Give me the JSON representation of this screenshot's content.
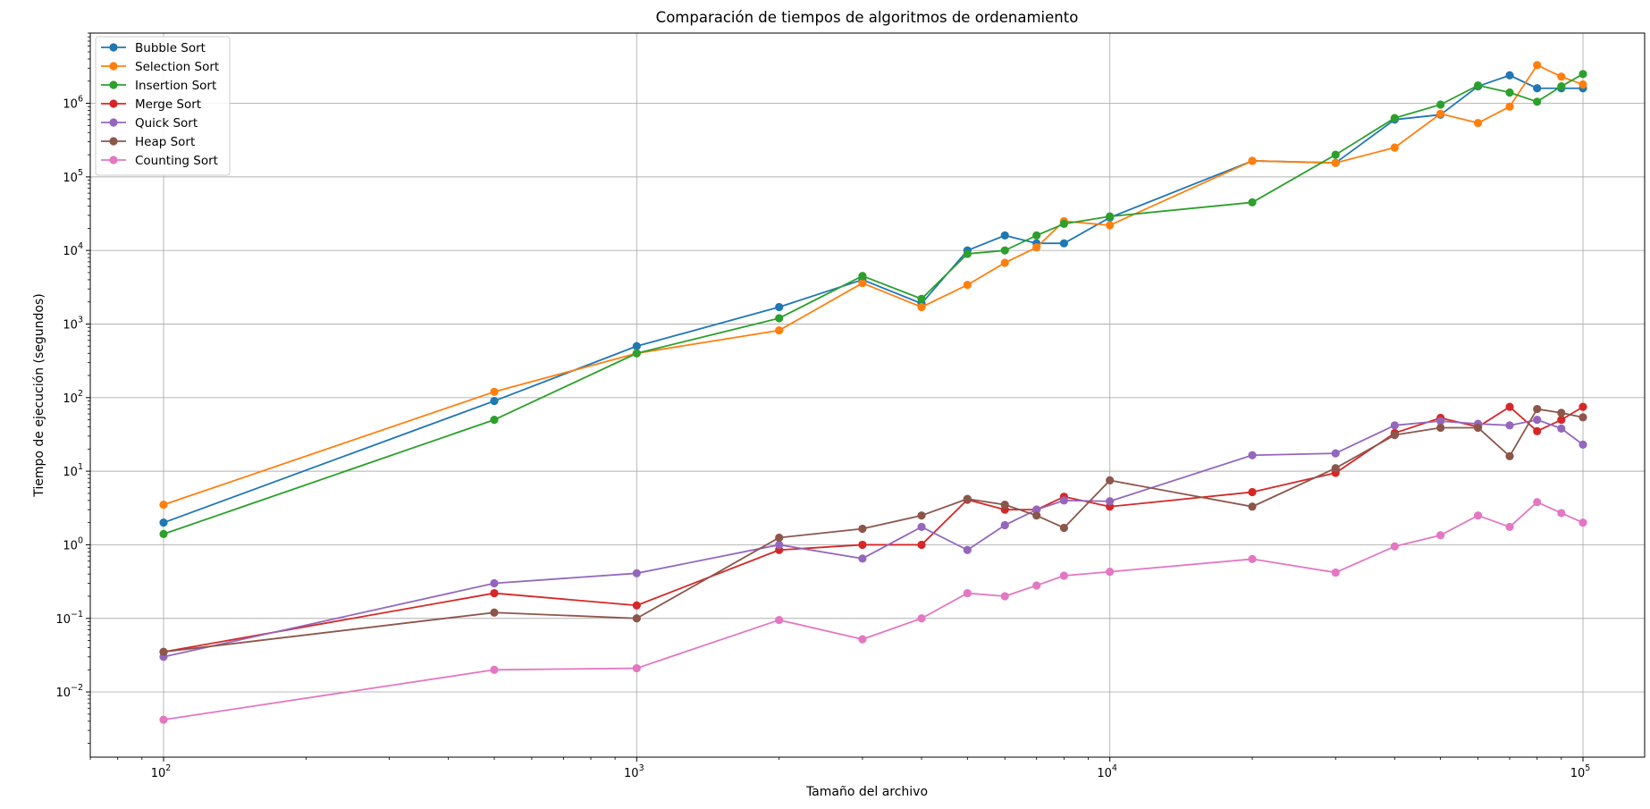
{
  "chart_data": {
    "type": "line",
    "title": "Comparación de tiempos de algoritmos de ordenamiento",
    "xlabel": "Tamaño del archivo",
    "ylabel": "Tiempo de ejecución (segundos)",
    "xscale": "log",
    "yscale": "log",
    "xlim": [
      70,
      135000
    ],
    "ylim": [
      0.0013,
      9000000
    ],
    "grid": true,
    "legend_position": "top-left",
    "x_ticks": [
      {
        "value": 100,
        "base": "10",
        "exp": "2"
      },
      {
        "value": 1000,
        "base": "10",
        "exp": "3"
      },
      {
        "value": 10000,
        "base": "10",
        "exp": "4"
      },
      {
        "value": 100000,
        "base": "10",
        "exp": "5"
      }
    ],
    "y_ticks": [
      {
        "value": 0.01,
        "base": "10",
        "exp": "−2"
      },
      {
        "value": 0.1,
        "base": "10",
        "exp": "−1"
      },
      {
        "value": 1,
        "base": "10",
        "exp": "0"
      },
      {
        "value": 10,
        "base": "10",
        "exp": "1"
      },
      {
        "value": 100,
        "base": "10",
        "exp": "2"
      },
      {
        "value": 1000,
        "base": "10",
        "exp": "3"
      },
      {
        "value": 10000,
        "base": "10",
        "exp": "4"
      },
      {
        "value": 100000,
        "base": "10",
        "exp": "5"
      },
      {
        "value": 1000000,
        "base": "10",
        "exp": "6"
      }
    ],
    "x": [
      100,
      500,
      1000,
      2000,
      3000,
      4000,
      5000,
      6000,
      7000,
      8000,
      10000,
      20000,
      30000,
      40000,
      50000,
      60000,
      70000,
      80000,
      90000,
      100000
    ],
    "series": [
      {
        "name": "Bubble Sort",
        "color": "#1f77b4",
        "values": [
          2.0,
          90,
          500,
          1700,
          4000,
          1900,
          10000,
          16000,
          12500,
          12500,
          28000,
          165000,
          155000,
          600000,
          700000,
          1700000,
          2400000,
          1600000,
          1600000,
          1600000
        ]
      },
      {
        "name": "Selection Sort",
        "color": "#ff7f0e",
        "values": [
          3.5,
          120,
          400,
          820,
          3600,
          1700,
          3400,
          6800,
          11000,
          25000,
          22000,
          165000,
          155000,
          250000,
          720000,
          540000,
          900000,
          3300000,
          2300000,
          1800000
        ]
      },
      {
        "name": "Insertion Sort",
        "color": "#2ca02c",
        "values": [
          1.4,
          50,
          400,
          1200,
          4500,
          2200,
          9000,
          10000,
          16000,
          23000,
          29000,
          45000,
          200000,
          630000,
          960000,
          1750000,
          1400000,
          1050000,
          1700000,
          2500000
        ]
      },
      {
        "name": "Merge Sort",
        "color": "#d62728",
        "values": [
          0.035,
          0.22,
          0.15,
          0.85,
          1.0,
          1.0,
          4.1,
          3.0,
          3.0,
          4.5,
          3.3,
          5.2,
          9.5,
          33,
          53,
          40,
          75,
          35,
          50,
          75
        ]
      },
      {
        "name": "Quick Sort",
        "color": "#9467bd",
        "values": [
          0.03,
          0.3,
          0.41,
          1.0,
          0.65,
          1.75,
          0.85,
          1.85,
          3.0,
          4.0,
          3.9,
          16.5,
          17.5,
          42,
          48,
          44,
          42,
          50,
          38,
          23
        ]
      },
      {
        "name": "Heap Sort",
        "color": "#8c564b",
        "values": [
          0.035,
          0.12,
          0.1,
          1.25,
          1.65,
          2.5,
          4.2,
          3.5,
          2.5,
          1.7,
          7.5,
          3.3,
          11,
          31,
          39,
          39,
          16,
          70,
          62,
          54
        ]
      },
      {
        "name": "Counting Sort",
        "color": "#e377c2",
        "values": [
          0.0042,
          0.02,
          0.021,
          0.095,
          0.052,
          0.1,
          0.22,
          0.2,
          0.28,
          0.38,
          0.43,
          0.64,
          0.42,
          0.95,
          1.35,
          2.5,
          1.75,
          3.8,
          2.7,
          2.0
        ]
      }
    ]
  }
}
